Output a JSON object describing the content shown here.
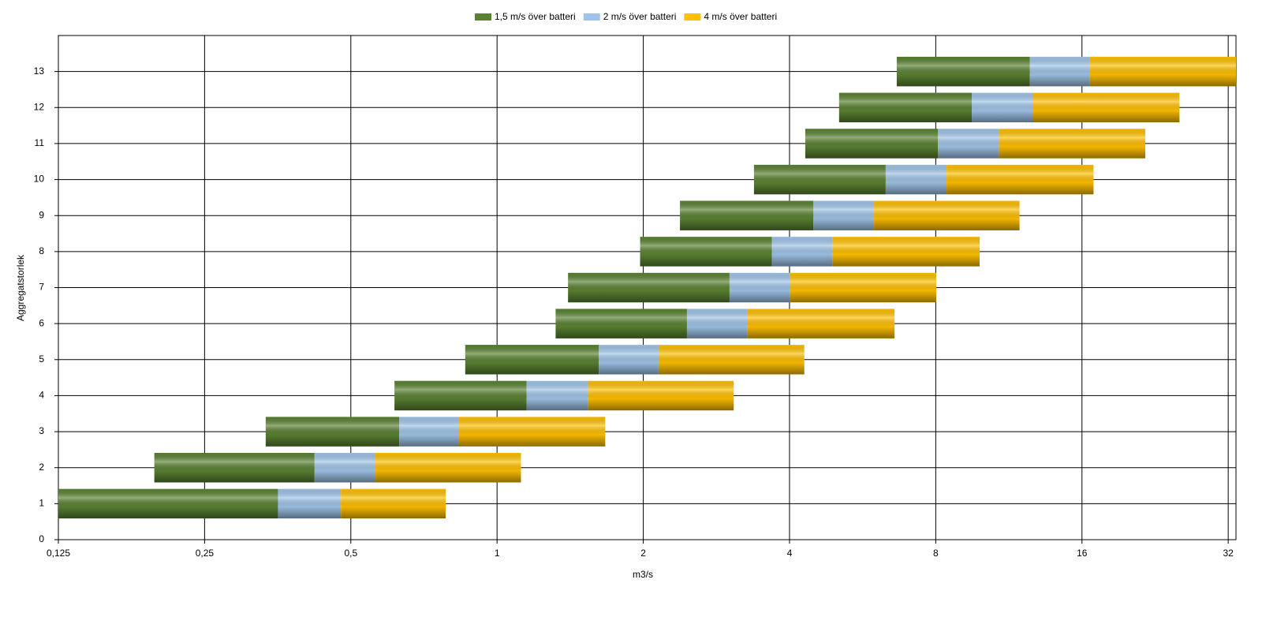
{
  "chart_data": {
    "type": "floating-bar",
    "orientation": "horizontal",
    "x_label": "m3/s",
    "y_label": "Aggregatstorlek",
    "xscale": "log2",
    "xlim": [
      0.125,
      33.2
    ],
    "xticks": [
      {
        "value": 0.125,
        "label": "0,125"
      },
      {
        "value": 0.25,
        "label": "0,25"
      },
      {
        "value": 0.5,
        "label": "0,5"
      },
      1,
      2,
      4,
      8,
      16,
      32
    ],
    "ylim": [
      0,
      14
    ],
    "yticks": [
      0,
      1,
      2,
      3,
      4,
      5,
      6,
      7,
      8,
      9,
      10,
      11,
      12,
      13
    ],
    "grid": true,
    "legend": "top",
    "categories": [
      1,
      2,
      3,
      4,
      5,
      6,
      7,
      8,
      9,
      10,
      11,
      12,
      13
    ],
    "starts": [
      0.125,
      0.197,
      0.334,
      0.615,
      0.86,
      1.32,
      1.4,
      1.97,
      2.38,
      3.38,
      4.31,
      5.06,
      6.65
    ],
    "series": [
      {
        "name": "1,5 m/s över batteri",
        "color": "#5a8232",
        "values": [
          0.354,
          0.421,
          0.629,
          1.15,
          1.62,
          2.46,
          3.01,
          3.68,
          4.48,
          6.31,
          8.08,
          9.49,
          12.5
        ]
      },
      {
        "name": "2 m/s över batteri",
        "color": "#9fc4e8",
        "values": [
          0.477,
          0.562,
          0.835,
          1.54,
          2.15,
          3.28,
          4.01,
          4.91,
          5.97,
          8.42,
          10.8,
          12.7,
          16.6
        ]
      },
      {
        "name": "4 m/s över batteri",
        "color": "#ffc000",
        "values": [
          0.784,
          1.12,
          1.67,
          3.07,
          4.29,
          6.58,
          8.02,
          9.85,
          11.9,
          16.9,
          21.6,
          25.4,
          33.2
        ]
      }
    ]
  }
}
